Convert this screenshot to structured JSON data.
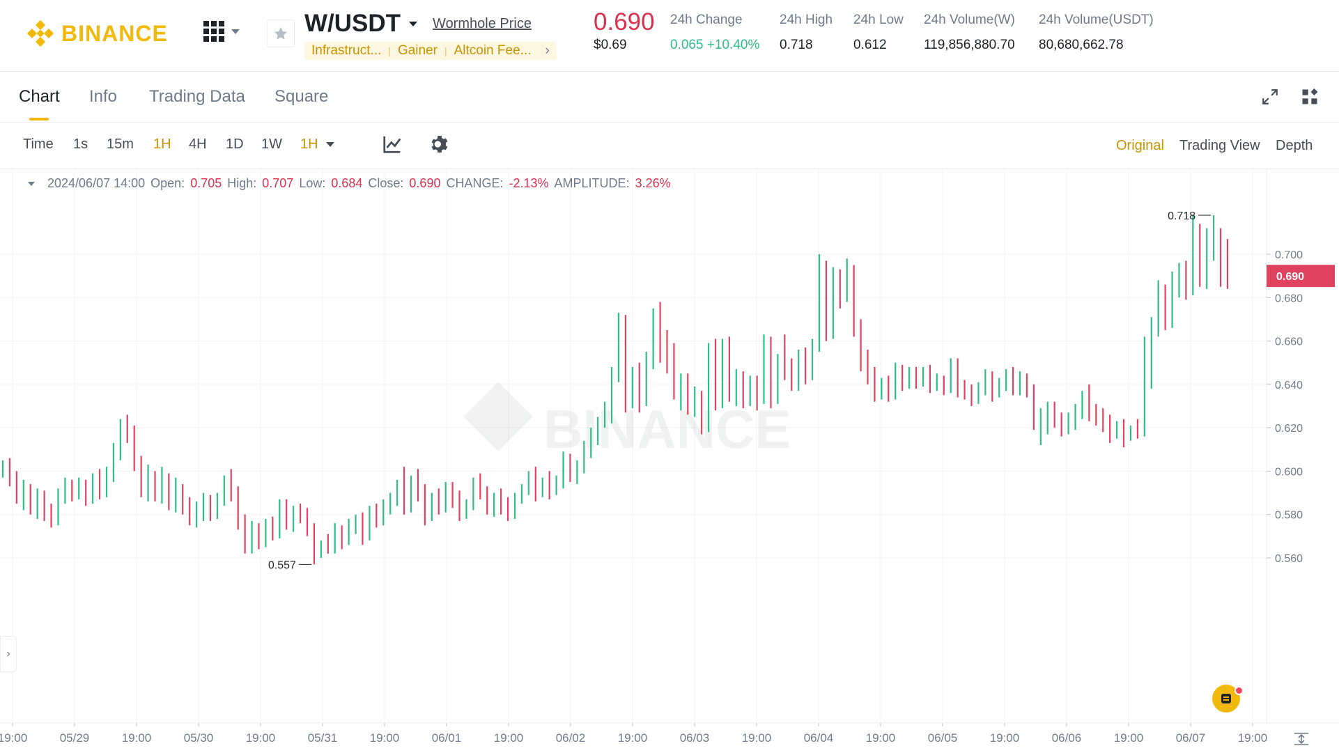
{
  "header": {
    "logo_text": "BINANCE",
    "pair": "W/USDT",
    "price_link": "Wormhole Price",
    "tags": [
      "Infrastruct...",
      "Gainer",
      "Altcoin Fee..."
    ],
    "last_price": "0.690",
    "last_price_usd": "$0.69",
    "stats": [
      {
        "label": "24h Change",
        "value": "0.065 +10.40%"
      },
      {
        "label": "24h High",
        "value": "0.718"
      },
      {
        "label": "24h Low",
        "value": "0.612"
      },
      {
        "label": "24h Volume(W)",
        "value": "119,856,880.70"
      },
      {
        "label": "24h Volume(USDT)",
        "value": "80,680,662.78"
      }
    ]
  },
  "tabs": [
    "Chart",
    "Info",
    "Trading Data",
    "Square"
  ],
  "toolbar": {
    "intervals": [
      "Time",
      "1s",
      "15m",
      "1H",
      "4H",
      "1D",
      "1W"
    ],
    "interval_dropdown": "1H",
    "views": [
      "Original",
      "Trading View",
      "Depth"
    ]
  },
  "legend": {
    "date": "2024/06/07 14:00",
    "open_label": "Open:",
    "open": "0.705",
    "high_label": "High:",
    "high": "0.707",
    "low_label": "Low:",
    "low": "0.684",
    "close_label": "Close:",
    "close": "0.690",
    "change_label": "CHANGE:",
    "change": "-2.13%",
    "amp_label": "AMPLITUDE:",
    "amp": "3.26%"
  },
  "colors": {
    "up": "#2ebd85",
    "down": "#e0435f",
    "brand": "#f0b90b"
  },
  "chart_data": {
    "type": "ohlc",
    "y_ticks": [
      "0.700",
      "0.680",
      "0.660",
      "0.640",
      "0.620",
      "0.600",
      "0.580",
      "0.560"
    ],
    "x_ticks": [
      "19:00",
      "05/29",
      "19:00",
      "05/30",
      "19:00",
      "05/31",
      "19:00",
      "06/01",
      "19:00",
      "06/02",
      "19:00",
      "06/03",
      "19:00",
      "06/04",
      "19:00",
      "06/05",
      "19:00",
      "06/06",
      "19:00",
      "06/07",
      "19:00"
    ],
    "current_price": "0.690",
    "max_marker": "0.718",
    "min_marker": "0.557",
    "watermark": "BINANCE",
    "candles": [
      [
        0.6,
        0.605,
        0.597,
        0.604
      ],
      [
        0.604,
        0.606,
        0.593,
        0.598
      ],
      [
        0.597,
        0.6,
        0.585,
        0.588
      ],
      [
        0.588,
        0.596,
        0.582,
        0.591
      ],
      [
        0.591,
        0.594,
        0.58,
        0.584
      ],
      [
        0.584,
        0.592,
        0.578,
        0.589
      ],
      [
        0.588,
        0.591,
        0.577,
        0.581
      ],
      [
        0.581,
        0.585,
        0.574,
        0.577
      ],
      [
        0.578,
        0.592,
        0.575,
        0.589
      ],
      [
        0.589,
        0.597,
        0.585,
        0.594
      ],
      [
        0.593,
        0.596,
        0.586,
        0.59
      ],
      [
        0.59,
        0.597,
        0.587,
        0.594
      ],
      [
        0.593,
        0.596,
        0.584,
        0.587
      ],
      [
        0.587,
        0.599,
        0.585,
        0.596
      ],
      [
        0.595,
        0.601,
        0.587,
        0.591
      ],
      [
        0.59,
        0.602,
        0.588,
        0.598
      ],
      [
        0.598,
        0.613,
        0.595,
        0.611
      ],
      [
        0.611,
        0.624,
        0.605,
        0.62
      ],
      [
        0.62,
        0.626,
        0.613,
        0.615
      ],
      [
        0.615,
        0.621,
        0.6,
        0.604
      ],
      [
        0.604,
        0.607,
        0.588,
        0.592
      ],
      [
        0.592,
        0.603,
        0.586,
        0.598
      ],
      [
        0.597,
        0.6,
        0.586,
        0.59
      ],
      [
        0.59,
        0.602,
        0.585,
        0.596
      ],
      [
        0.596,
        0.599,
        0.582,
        0.586
      ],
      [
        0.586,
        0.597,
        0.581,
        0.592
      ],
      [
        0.591,
        0.594,
        0.58,
        0.584
      ],
      [
        0.584,
        0.588,
        0.575,
        0.578
      ],
      [
        0.578,
        0.586,
        0.574,
        0.582
      ],
      [
        0.582,
        0.59,
        0.577,
        0.585
      ],
      [
        0.585,
        0.589,
        0.577,
        0.581
      ],
      [
        0.581,
        0.59,
        0.578,
        0.587
      ],
      [
        0.587,
        0.598,
        0.584,
        0.594
      ],
      [
        0.594,
        0.601,
        0.586,
        0.59
      ],
      [
        0.59,
        0.593,
        0.573,
        0.576
      ],
      [
        0.576,
        0.58,
        0.562,
        0.565
      ],
      [
        0.565,
        0.577,
        0.562,
        0.573
      ],
      [
        0.573,
        0.576,
        0.564,
        0.568
      ],
      [
        0.568,
        0.578,
        0.565,
        0.575
      ],
      [
        0.575,
        0.579,
        0.568,
        0.571
      ],
      [
        0.571,
        0.587,
        0.569,
        0.584
      ],
      [
        0.584,
        0.587,
        0.573,
        0.577
      ],
      [
        0.577,
        0.584,
        0.572,
        0.581
      ],
      [
        0.581,
        0.585,
        0.576,
        0.579
      ],
      [
        0.579,
        0.583,
        0.57,
        0.573
      ],
      [
        0.573,
        0.576,
        0.557,
        0.562
      ],
      [
        0.562,
        0.568,
        0.56,
        0.566
      ],
      [
        0.566,
        0.571,
        0.562,
        0.564
      ],
      [
        0.564,
        0.576,
        0.562,
        0.573
      ],
      [
        0.573,
        0.575,
        0.564,
        0.568
      ],
      [
        0.568,
        0.578,
        0.566,
        0.575
      ],
      [
        0.575,
        0.58,
        0.571,
        0.577
      ],
      [
        0.577,
        0.581,
        0.566,
        0.57
      ],
      [
        0.57,
        0.584,
        0.568,
        0.581
      ],
      [
        0.581,
        0.585,
        0.574,
        0.577
      ],
      [
        0.577,
        0.587,
        0.575,
        0.584
      ],
      [
        0.584,
        0.59,
        0.58,
        0.587
      ],
      [
        0.587,
        0.596,
        0.584,
        0.593
      ],
      [
        0.592,
        0.602,
        0.58,
        0.584
      ],
      [
        0.584,
        0.598,
        0.581,
        0.595
      ],
      [
        0.595,
        0.601,
        0.586,
        0.589
      ],
      [
        0.589,
        0.594,
        0.575,
        0.58
      ],
      [
        0.58,
        0.59,
        0.577,
        0.587
      ],
      [
        0.587,
        0.592,
        0.58,
        0.583
      ],
      [
        0.583,
        0.595,
        0.581,
        0.592
      ],
      [
        0.592,
        0.595,
        0.583,
        0.586
      ],
      [
        0.586,
        0.591,
        0.577,
        0.58
      ],
      [
        0.58,
        0.587,
        0.578,
        0.585
      ],
      [
        0.584,
        0.597,
        0.582,
        0.594
      ],
      [
        0.594,
        0.599,
        0.587,
        0.59
      ],
      [
        0.59,
        0.593,
        0.58,
        0.583
      ],
      [
        0.583,
        0.59,
        0.579,
        0.587
      ],
      [
        0.587,
        0.592,
        0.58,
        0.584
      ],
      [
        0.584,
        0.588,
        0.577,
        0.58
      ],
      [
        0.58,
        0.59,
        0.578,
        0.587
      ],
      [
        0.587,
        0.594,
        0.585,
        0.591
      ],
      [
        0.591,
        0.6,
        0.589,
        0.597
      ],
      [
        0.597,
        0.602,
        0.586,
        0.59
      ],
      [
        0.59,
        0.597,
        0.588,
        0.595
      ],
      [
        0.595,
        0.6,
        0.587,
        0.592
      ],
      [
        0.592,
        0.598,
        0.589,
        0.596
      ],
      [
        0.596,
        0.609,
        0.592,
        0.605
      ],
      [
        0.605,
        0.608,
        0.595,
        0.599
      ],
      [
        0.599,
        0.605,
        0.594,
        0.602
      ],
      [
        0.602,
        0.614,
        0.599,
        0.611
      ],
      [
        0.611,
        0.62,
        0.606,
        0.617
      ],
      [
        0.617,
        0.625,
        0.612,
        0.622
      ],
      [
        0.622,
        0.632,
        0.62,
        0.628
      ],
      [
        0.628,
        0.648,
        0.622,
        0.645
      ],
      [
        0.645,
        0.673,
        0.641,
        0.668
      ],
      [
        0.668,
        0.672,
        0.627,
        0.631
      ],
      [
        0.631,
        0.648,
        0.629,
        0.645
      ],
      [
        0.645,
        0.65,
        0.627,
        0.633
      ],
      [
        0.633,
        0.655,
        0.63,
        0.652
      ],
      [
        0.651,
        0.675,
        0.647,
        0.668
      ],
      [
        0.668,
        0.678,
        0.65,
        0.655
      ],
      [
        0.655,
        0.665,
        0.645,
        0.65
      ],
      [
        0.65,
        0.659,
        0.633,
        0.637
      ],
      [
        0.637,
        0.645,
        0.628,
        0.64
      ],
      [
        0.64,
        0.645,
        0.626,
        0.629
      ],
      [
        0.629,
        0.639,
        0.625,
        0.635
      ],
      [
        0.635,
        0.637,
        0.617,
        0.62
      ],
      [
        0.62,
        0.659,
        0.618,
        0.655
      ],
      [
        0.655,
        0.661,
        0.628,
        0.632
      ],
      [
        0.632,
        0.661,
        0.629,
        0.658
      ],
      [
        0.658,
        0.662,
        0.632,
        0.636
      ],
      [
        0.636,
        0.647,
        0.63,
        0.643
      ],
      [
        0.643,
        0.646,
        0.629,
        0.633
      ],
      [
        0.633,
        0.644,
        0.63,
        0.641
      ],
      [
        0.641,
        0.644,
        0.628,
        0.634
      ],
      [
        0.634,
        0.663,
        0.631,
        0.659
      ],
      [
        0.659,
        0.662,
        0.629,
        0.634
      ],
      [
        0.634,
        0.654,
        0.631,
        0.65
      ],
      [
        0.65,
        0.663,
        0.642,
        0.646
      ],
      [
        0.646,
        0.652,
        0.637,
        0.641
      ],
      [
        0.641,
        0.656,
        0.637,
        0.653
      ],
      [
        0.653,
        0.657,
        0.64,
        0.645
      ],
      [
        0.645,
        0.661,
        0.642,
        0.658
      ],
      [
        0.658,
        0.7,
        0.655,
        0.69
      ],
      [
        0.69,
        0.697,
        0.66,
        0.664
      ],
      [
        0.664,
        0.694,
        0.661,
        0.69
      ],
      [
        0.69,
        0.693,
        0.675,
        0.68
      ],
      [
        0.68,
        0.698,
        0.678,
        0.694
      ],
      [
        0.694,
        0.695,
        0.662,
        0.666
      ],
      [
        0.666,
        0.67,
        0.646,
        0.65
      ],
      [
        0.65,
        0.656,
        0.64,
        0.644
      ],
      [
        0.644,
        0.648,
        0.632,
        0.636
      ],
      [
        0.636,
        0.643,
        0.633,
        0.641
      ],
      [
        0.641,
        0.644,
        0.632,
        0.636
      ],
      [
        0.636,
        0.65,
        0.633,
        0.646
      ],
      [
        0.646,
        0.649,
        0.637,
        0.64
      ],
      [
        0.64,
        0.648,
        0.638,
        0.645
      ],
      [
        0.645,
        0.648,
        0.638,
        0.641
      ],
      [
        0.641,
        0.648,
        0.639,
        0.645
      ],
      [
        0.645,
        0.649,
        0.636,
        0.64
      ],
      [
        0.64,
        0.645,
        0.637,
        0.641
      ],
      [
        0.641,
        0.644,
        0.635,
        0.638
      ],
      [
        0.638,
        0.652,
        0.636,
        0.648
      ],
      [
        0.648,
        0.652,
        0.634,
        0.637
      ],
      [
        0.637,
        0.642,
        0.633,
        0.636
      ],
      [
        0.636,
        0.64,
        0.63,
        0.633
      ],
      [
        0.633,
        0.641,
        0.631,
        0.638
      ],
      [
        0.638,
        0.647,
        0.635,
        0.643
      ],
      [
        0.643,
        0.646,
        0.632,
        0.636
      ],
      [
        0.636,
        0.643,
        0.634,
        0.64
      ],
      [
        0.64,
        0.647,
        0.637,
        0.644
      ],
      [
        0.644,
        0.648,
        0.635,
        0.638
      ],
      [
        0.638,
        0.646,
        0.635,
        0.642
      ],
      [
        0.642,
        0.645,
        0.634,
        0.637
      ],
      [
        0.637,
        0.64,
        0.619,
        0.623
      ],
      [
        0.623,
        0.629,
        0.612,
        0.625
      ],
      [
        0.625,
        0.632,
        0.617,
        0.628
      ],
      [
        0.628,
        0.632,
        0.62,
        0.624
      ],
      [
        0.624,
        0.627,
        0.616,
        0.62
      ],
      [
        0.62,
        0.627,
        0.617,
        0.624
      ],
      [
        0.624,
        0.631,
        0.619,
        0.627
      ],
      [
        0.627,
        0.637,
        0.624,
        0.633
      ],
      [
        0.633,
        0.64,
        0.623,
        0.626
      ],
      [
        0.626,
        0.631,
        0.621,
        0.624
      ],
      [
        0.624,
        0.629,
        0.618,
        0.621
      ],
      [
        0.621,
        0.626,
        0.613,
        0.618
      ],
      [
        0.618,
        0.623,
        0.615,
        0.62
      ],
      [
        0.62,
        0.624,
        0.611,
        0.615
      ],
      [
        0.615,
        0.621,
        0.614,
        0.619
      ],
      [
        0.619,
        0.624,
        0.615,
        0.617
      ],
      [
        0.617,
        0.662,
        0.616,
        0.658
      ],
      [
        0.658,
        0.671,
        0.638,
        0.667
      ],
      [
        0.667,
        0.688,
        0.662,
        0.684
      ],
      [
        0.684,
        0.686,
        0.665,
        0.67
      ],
      [
        0.67,
        0.692,
        0.666,
        0.688
      ],
      [
        0.688,
        0.696,
        0.68,
        0.693
      ],
      [
        0.693,
        0.697,
        0.679,
        0.684
      ],
      [
        0.684,
        0.718,
        0.681,
        0.712
      ],
      [
        0.712,
        0.714,
        0.685,
        0.69
      ],
      [
        0.69,
        0.712,
        0.684,
        0.703
      ],
      [
        0.703,
        0.718,
        0.697,
        0.71
      ],
      [
        0.71,
        0.712,
        0.685,
        0.705
      ],
      [
        0.705,
        0.707,
        0.684,
        0.69
      ]
    ]
  }
}
